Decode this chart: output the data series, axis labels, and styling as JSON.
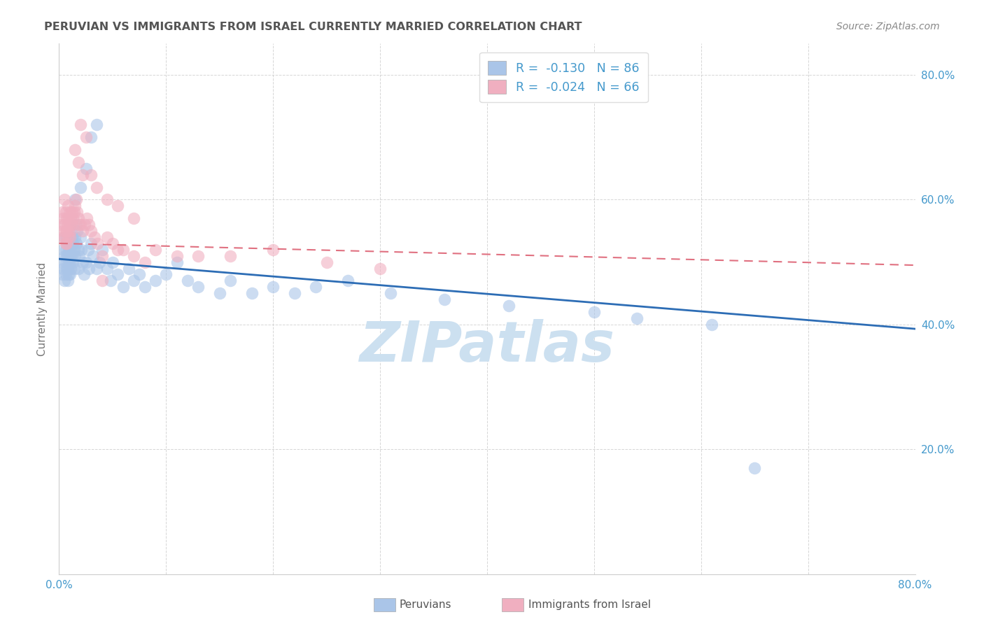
{
  "title": "PERUVIAN VS IMMIGRANTS FROM ISRAEL CURRENTLY MARRIED CORRELATION CHART",
  "source": "Source: ZipAtlas.com",
  "ylabel": "Currently Married",
  "watermark": "ZIPatlas",
  "xlim": [
    0.0,
    0.8
  ],
  "ylim": [
    0.0,
    0.85
  ],
  "blue_color": "#aac5e8",
  "pink_color": "#f0afc0",
  "blue_line_color": "#2d6db5",
  "pink_line_color": "#e07080",
  "grid_color": "#cccccc",
  "title_color": "#555555",
  "source_color": "#888888",
  "watermark_color": "#cce0f0",
  "tick_label_color": "#4499cc",
  "blue_scatter_x": [
    0.002,
    0.003,
    0.004,
    0.004,
    0.005,
    0.005,
    0.005,
    0.006,
    0.006,
    0.006,
    0.007,
    0.007,
    0.007,
    0.008,
    0.008,
    0.008,
    0.008,
    0.009,
    0.009,
    0.009,
    0.01,
    0.01,
    0.01,
    0.01,
    0.011,
    0.011,
    0.011,
    0.012,
    0.012,
    0.013,
    0.013,
    0.014,
    0.014,
    0.015,
    0.015,
    0.016,
    0.016,
    0.017,
    0.018,
    0.018,
    0.019,
    0.02,
    0.021,
    0.022,
    0.023,
    0.025,
    0.027,
    0.028,
    0.03,
    0.032,
    0.035,
    0.038,
    0.04,
    0.045,
    0.048,
    0.05,
    0.055,
    0.06,
    0.065,
    0.07,
    0.075,
    0.08,
    0.09,
    0.1,
    0.11,
    0.12,
    0.13,
    0.15,
    0.16,
    0.18,
    0.2,
    0.22,
    0.24,
    0.27,
    0.31,
    0.36,
    0.42,
    0.5,
    0.54,
    0.61,
    0.65,
    0.015,
    0.02,
    0.025,
    0.03,
    0.035
  ],
  "blue_scatter_y": [
    0.5,
    0.48,
    0.52,
    0.49,
    0.51,
    0.54,
    0.47,
    0.52,
    0.5,
    0.48,
    0.54,
    0.51,
    0.49,
    0.53,
    0.51,
    0.49,
    0.47,
    0.52,
    0.5,
    0.48,
    0.54,
    0.52,
    0.5,
    0.48,
    0.53,
    0.51,
    0.49,
    0.54,
    0.51,
    0.53,
    0.5,
    0.52,
    0.49,
    0.54,
    0.51,
    0.56,
    0.53,
    0.55,
    0.52,
    0.49,
    0.51,
    0.54,
    0.52,
    0.5,
    0.48,
    0.5,
    0.52,
    0.49,
    0.53,
    0.51,
    0.49,
    0.5,
    0.52,
    0.49,
    0.47,
    0.5,
    0.48,
    0.46,
    0.49,
    0.47,
    0.48,
    0.46,
    0.47,
    0.48,
    0.5,
    0.47,
    0.46,
    0.45,
    0.47,
    0.45,
    0.46,
    0.45,
    0.46,
    0.47,
    0.45,
    0.44,
    0.43,
    0.42,
    0.41,
    0.4,
    0.17,
    0.6,
    0.62,
    0.65,
    0.7,
    0.72
  ],
  "pink_scatter_x": [
    0.002,
    0.003,
    0.003,
    0.004,
    0.004,
    0.005,
    0.005,
    0.005,
    0.006,
    0.006,
    0.006,
    0.007,
    0.007,
    0.007,
    0.008,
    0.008,
    0.008,
    0.009,
    0.009,
    0.01,
    0.01,
    0.01,
    0.011,
    0.011,
    0.012,
    0.012,
    0.013,
    0.014,
    0.015,
    0.016,
    0.017,
    0.018,
    0.019,
    0.02,
    0.022,
    0.024,
    0.026,
    0.028,
    0.03,
    0.033,
    0.036,
    0.04,
    0.045,
    0.05,
    0.055,
    0.06,
    0.07,
    0.08,
    0.09,
    0.11,
    0.13,
    0.16,
    0.2,
    0.25,
    0.3,
    0.04,
    0.02,
    0.025,
    0.015,
    0.018,
    0.022,
    0.03,
    0.035,
    0.045,
    0.055,
    0.07
  ],
  "pink_scatter_y": [
    0.56,
    0.54,
    0.58,
    0.55,
    0.57,
    0.6,
    0.56,
    0.54,
    0.58,
    0.55,
    0.53,
    0.57,
    0.55,
    0.53,
    0.59,
    0.56,
    0.54,
    0.57,
    0.55,
    0.58,
    0.56,
    0.54,
    0.57,
    0.55,
    0.58,
    0.56,
    0.57,
    0.58,
    0.59,
    0.6,
    0.58,
    0.57,
    0.56,
    0.56,
    0.55,
    0.56,
    0.57,
    0.56,
    0.55,
    0.54,
    0.53,
    0.51,
    0.54,
    0.53,
    0.52,
    0.52,
    0.51,
    0.5,
    0.52,
    0.51,
    0.51,
    0.51,
    0.52,
    0.5,
    0.49,
    0.47,
    0.72,
    0.7,
    0.68,
    0.66,
    0.64,
    0.64,
    0.62,
    0.6,
    0.59,
    0.57
  ],
  "blue_line_x": [
    0.0,
    0.8
  ],
  "blue_line_y": [
    0.505,
    0.393
  ],
  "pink_line_x": [
    0.0,
    0.8
  ],
  "pink_line_y": [
    0.53,
    0.495
  ],
  "legend_blue_label": "R =  -0.130   N = 86",
  "legend_pink_label": "R =  -0.024   N = 66"
}
